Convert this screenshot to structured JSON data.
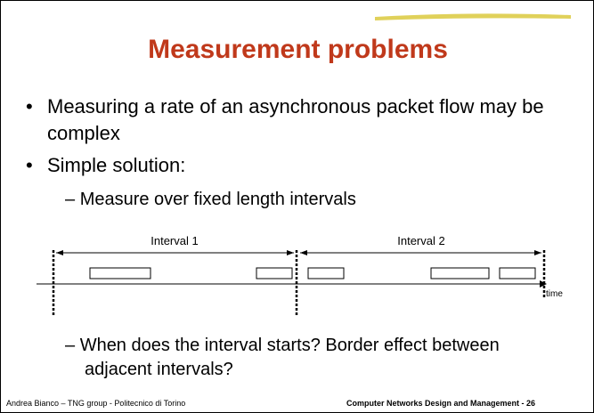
{
  "title": "Measurement problems",
  "bullets": [
    {
      "text": "Measuring a rate of an asynchronous packet flow may be complex"
    },
    {
      "text": "Simple solution:",
      "sub": [
        "Measure over fixed length intervals"
      ]
    }
  ],
  "diagram": {
    "interval1": "Interval 1",
    "interval2": "Interval 2",
    "axis": "time"
  },
  "bottom_sub": "When does the interval starts? Border effect between adjacent intervals?",
  "footer": {
    "left": "Andrea Bianco – TNG group - Politecnico di Torino",
    "right": "Computer Networks Design and Management - 26"
  }
}
